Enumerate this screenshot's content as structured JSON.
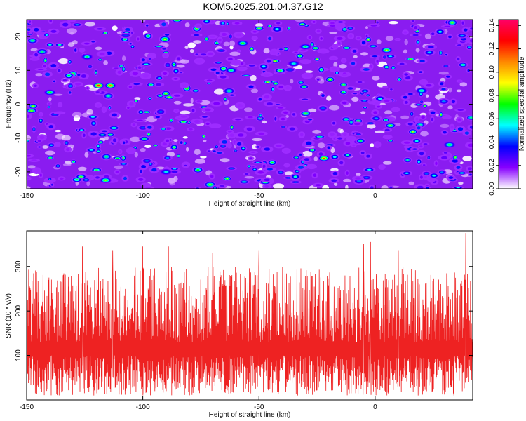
{
  "title": "KOM5.2025.201.04.37.G12",
  "colors": {
    "snr_line": "#ee2222",
    "frame": "#000000"
  },
  "chart_data": [
    {
      "type": "heatmap",
      "xlabel": "Height of straight line (km)",
      "ylabel": "Frequency (Hz)",
      "xlim": [
        -150,
        42
      ],
      "ylim": [
        -25,
        25
      ],
      "x_ticks": [
        -150,
        -100,
        -50,
        0
      ],
      "y_ticks": [
        -20,
        -10,
        0,
        10,
        20
      ],
      "x_tick_labels": [
        "-150",
        "-100",
        "-50",
        "0"
      ],
      "y_tick_labels": [
        "-20",
        "-10",
        "0",
        "10",
        "20"
      ],
      "colorbar": {
        "label": "Normalized spectral amplitude",
        "range": [
          0,
          0.145
        ],
        "ticks": [
          0.0,
          0.02,
          0.04,
          0.06,
          0.08,
          0.1,
          0.12,
          0.14
        ],
        "tick_labels": [
          "0.00",
          "0.02",
          "0.04",
          "0.06",
          "0.08",
          "0.10",
          "0.12",
          "0.14"
        ],
        "colormap": [
          "#ffffff",
          "#8800ff",
          "#0000ff",
          "#00ffff",
          "#00ff00",
          "#ffff00",
          "#ff8800",
          "#ff0000",
          "#ff0066"
        ]
      },
      "hotspots": [
        {
          "x": -119,
          "y": 5.5,
          "v": 0.14
        },
        {
          "x": -114,
          "y": 5.5,
          "v": 0.12
        },
        {
          "x": -22,
          "y": -16,
          "v": 0.12
        },
        {
          "x": 5,
          "y": 16,
          "v": 0.09
        },
        {
          "x": -140,
          "y": 3.5,
          "v": 0.08
        },
        {
          "x": -124,
          "y": 14,
          "v": 0.07
        },
        {
          "x": -57,
          "y": 18,
          "v": 0.08
        },
        {
          "x": -30,
          "y": 17,
          "v": 0.07
        },
        {
          "x": 32,
          "y": -12,
          "v": 0.08
        },
        {
          "x": -62,
          "y": 10,
          "v": 0.07
        },
        {
          "x": -116,
          "y": -22.5,
          "v": 0.09
        },
        {
          "x": -90,
          "y": -20,
          "v": 0.06
        },
        {
          "x": -35,
          "y": 12,
          "v": 0.06
        },
        {
          "x": 20,
          "y": 4,
          "v": 0.07
        }
      ]
    },
    {
      "type": "line",
      "xlabel": "Height of straight line (km)",
      "ylabel": "SNR (10 * v/v)",
      "xlim": [
        -150,
        42
      ],
      "ylim": [
        0,
        380
      ],
      "x_ticks": [
        -150,
        -100,
        -50,
        0
      ],
      "y_ticks": [
        100,
        200,
        300
      ],
      "x_tick_labels": [
        "-150",
        "-100",
        "-50",
        "0"
      ],
      "y_tick_labels": [
        "100",
        "200",
        "300"
      ],
      "baseline": 110,
      "peaks": [
        {
          "x": -126,
          "y": 345
        },
        {
          "x": -113,
          "y": 335
        },
        {
          "x": -100,
          "y": 345
        },
        {
          "x": -89,
          "y": 345
        },
        {
          "x": -70,
          "y": 330
        },
        {
          "x": -50,
          "y": 335
        },
        {
          "x": -5,
          "y": 350
        },
        {
          "x": -2,
          "y": 355
        },
        {
          "x": 10,
          "y": 335
        },
        {
          "x": 39,
          "y": 375
        }
      ]
    }
  ]
}
